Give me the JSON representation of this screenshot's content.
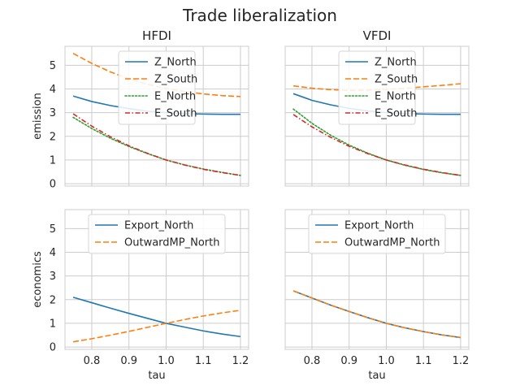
{
  "figure": {
    "title": "Trade liberalization"
  },
  "chart_data": [
    {
      "type": "line",
      "title": "HFDI",
      "xlabel": "",
      "ylabel": "emission",
      "xlim": [
        0.728,
        1.222
      ],
      "ylim": [
        -0.1,
        5.8
      ],
      "xticks": [
        0.8,
        0.9,
        1.0,
        1.1,
        1.2
      ],
      "yticks": [
        0,
        1,
        2,
        3,
        4,
        5
      ],
      "show_xticklabels": false,
      "show_yticklabels": true,
      "grid": true,
      "legend_position": "top-center",
      "x": [
        0.75,
        0.8,
        0.85,
        0.9,
        0.95,
        1.0,
        1.05,
        1.1,
        1.15,
        1.2
      ],
      "series": [
        {
          "name": "Z_North",
          "color": "#1f77b4",
          "style": "solid",
          "values": [
            3.7,
            3.47,
            3.3,
            3.17,
            3.06,
            3.0,
            2.96,
            2.94,
            2.93,
            2.93
          ]
        },
        {
          "name": "Z_South",
          "color": "#ff7f0e",
          "style": "dashed",
          "values": [
            5.5,
            5.08,
            4.72,
            4.43,
            4.2,
            4.02,
            3.89,
            3.79,
            3.72,
            3.68
          ]
        },
        {
          "name": "E_North",
          "color": "#2ca02c",
          "style": "dotted",
          "values": [
            2.8,
            2.33,
            1.92,
            1.57,
            1.27,
            1.0,
            0.79,
            0.62,
            0.48,
            0.35
          ]
        },
        {
          "name": "E_South",
          "color": "#d62728",
          "style": "dashdot",
          "values": [
            2.95,
            2.43,
            1.98,
            1.6,
            1.28,
            1.0,
            0.79,
            0.61,
            0.47,
            0.35
          ]
        }
      ]
    },
    {
      "type": "line",
      "title": "VFDI",
      "xlabel": "",
      "ylabel": "",
      "xlim": [
        0.728,
        1.222
      ],
      "ylim": [
        -0.1,
        5.8
      ],
      "xticks": [
        0.8,
        0.9,
        1.0,
        1.1,
        1.2
      ],
      "yticks": [
        0,
        1,
        2,
        3,
        4,
        5
      ],
      "show_xticklabels": false,
      "show_yticklabels": false,
      "grid": true,
      "legend_position": "top-center",
      "x": [
        0.75,
        0.8,
        0.85,
        0.9,
        0.95,
        1.0,
        1.05,
        1.1,
        1.15,
        1.2
      ],
      "series": [
        {
          "name": "Z_North",
          "color": "#1f77b4",
          "style": "solid",
          "values": [
            3.8,
            3.52,
            3.33,
            3.18,
            3.07,
            3.0,
            2.96,
            2.94,
            2.93,
            2.93
          ]
        },
        {
          "name": "Z_South",
          "color": "#ff7f0e",
          "style": "dashed",
          "values": [
            4.13,
            4.03,
            3.97,
            3.94,
            3.95,
            3.98,
            4.03,
            4.09,
            4.15,
            4.22
          ]
        },
        {
          "name": "E_North",
          "color": "#2ca02c",
          "style": "dotted",
          "values": [
            3.15,
            2.55,
            2.05,
            1.63,
            1.29,
            1.0,
            0.78,
            0.6,
            0.46,
            0.35
          ]
        },
        {
          "name": "E_South",
          "color": "#d62728",
          "style": "dashdot",
          "values": [
            2.92,
            2.4,
            1.96,
            1.58,
            1.27,
            1.0,
            0.79,
            0.61,
            0.47,
            0.35
          ]
        }
      ]
    },
    {
      "type": "line",
      "title": "",
      "xlabel": "tau",
      "ylabel": "economics",
      "xlim": [
        0.728,
        1.222
      ],
      "ylim": [
        -0.1,
        5.8
      ],
      "xticks": [
        0.8,
        0.9,
        1.0,
        1.1,
        1.2
      ],
      "xticklabels": [
        "0.8",
        "0.9",
        "1.0",
        "1.1",
        "1.2"
      ],
      "yticks": [
        0,
        1,
        2,
        3,
        4,
        5
      ],
      "show_xticklabels": true,
      "show_yticklabels": true,
      "grid": true,
      "legend_position": "top-center",
      "x": [
        0.75,
        0.8,
        0.85,
        0.9,
        0.95,
        1.0,
        1.05,
        1.1,
        1.15,
        1.2
      ],
      "series": [
        {
          "name": "Export_North",
          "color": "#1f77b4",
          "style": "solid",
          "values": [
            2.1,
            1.87,
            1.64,
            1.42,
            1.21,
            1.0,
            0.84,
            0.68,
            0.55,
            0.44
          ]
        },
        {
          "name": "OutwardMP_North",
          "color": "#ff7f0e",
          "style": "dashed",
          "values": [
            0.22,
            0.35,
            0.5,
            0.66,
            0.83,
            1.0,
            1.16,
            1.31,
            1.44,
            1.55
          ]
        }
      ]
    },
    {
      "type": "line",
      "title": "",
      "xlabel": "tau",
      "ylabel": "",
      "xlim": [
        0.728,
        1.222
      ],
      "ylim": [
        -0.1,
        5.8
      ],
      "xticks": [
        0.8,
        0.9,
        1.0,
        1.1,
        1.2
      ],
      "xticklabels": [
        "0.8",
        "0.9",
        "1.0",
        "1.1",
        "1.2"
      ],
      "yticks": [
        0,
        1,
        2,
        3,
        4,
        5
      ],
      "show_xticklabels": true,
      "show_yticklabels": false,
      "grid": true,
      "legend_position": "top-center",
      "x": [
        0.75,
        0.8,
        0.85,
        0.9,
        0.95,
        1.0,
        1.05,
        1.1,
        1.15,
        1.2
      ],
      "series": [
        {
          "name": "Export_North",
          "color": "#1f77b4",
          "style": "solid",
          "values": [
            2.37,
            2.07,
            1.77,
            1.5,
            1.24,
            1.0,
            0.81,
            0.65,
            0.51,
            0.4
          ]
        },
        {
          "name": "OutwardMP_North",
          "color": "#ff7f0e",
          "style": "dashed",
          "values": [
            2.37,
            2.07,
            1.77,
            1.5,
            1.24,
            1.0,
            0.81,
            0.65,
            0.51,
            0.4
          ]
        }
      ]
    }
  ]
}
